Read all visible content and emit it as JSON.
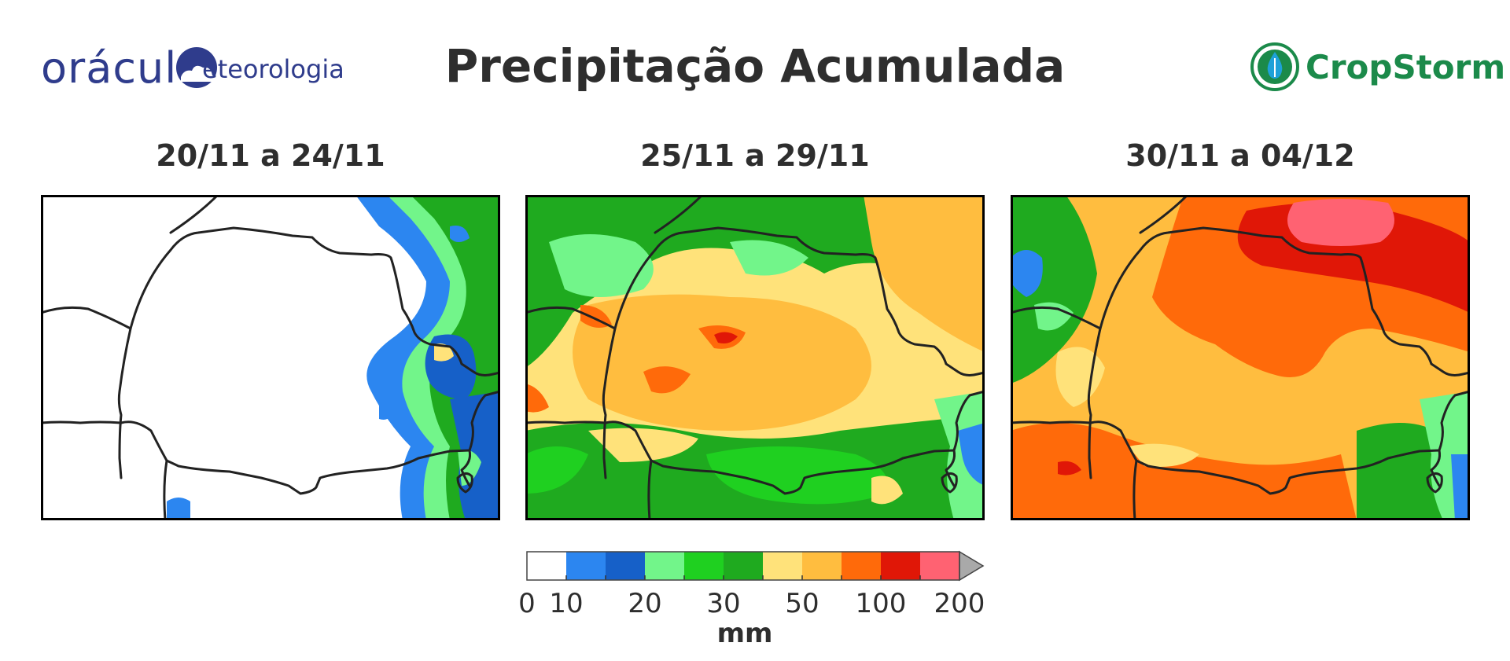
{
  "header": {
    "title": "Precipitação Acumulada",
    "logo_left_big": "orácul",
    "logo_left_small": "eteorologia",
    "logo_right": "CropStorm"
  },
  "panels": [
    {
      "period": "20/11 a 24/11"
    },
    {
      "period": "25/11 a 29/11"
    },
    {
      "period": "30/11 a 04/12"
    }
  ],
  "colorbar": {
    "unit": "mm",
    "tick_labels": [
      "0",
      "10",
      "20",
      "30",
      "50",
      "100",
      "200"
    ],
    "colors": [
      "#ffffff",
      "#2c86f0",
      "#1660c8",
      "#72f58a",
      "#1fd020",
      "#1faa1f",
      "#ffe27a",
      "#ffbd3f",
      "#ff6a0a",
      "#e01707",
      "#ff6272"
    ],
    "extend_color": "#a9a9a9"
  },
  "brand_colors": {
    "oraculo": "#2f3c8c",
    "cropstorm": "#1b8a4a"
  }
}
